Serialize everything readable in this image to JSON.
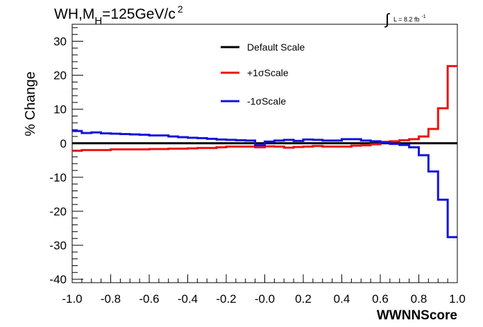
{
  "chart_data": {
    "type": "line",
    "title_main": "WH,M",
    "title_sub": "H",
    "title_rest": "=125GeV/c",
    "title_sup": "2",
    "lumi_integral": "∫",
    "lumi_text": "L = 8.2 fb",
    "lumi_sup": "-1",
    "xlabel": "WWNNScore",
    "ylabel": "% Change",
    "xlim": [
      -1.0,
      1.0
    ],
    "ylim": [
      -41,
      35
    ],
    "x_ticks": [
      "-1.0",
      "-0.8",
      "-0.6",
      "-0.4",
      "-0.2",
      "-0.0",
      "0.2",
      "0.4",
      "0.6",
      "0.8",
      "1.0"
    ],
    "y_ticks": [
      "-40",
      "-30",
      "-20",
      "-10",
      "0",
      "10",
      "20",
      "30"
    ],
    "legend": [
      {
        "label": "Default Scale",
        "color": "#000000"
      },
      {
        "label": "+1σScale",
        "color": "#ee1111"
      },
      {
        "label": "-1σScale",
        "color": "#1111dd"
      }
    ],
    "bin_edges": [
      -1.0,
      -0.95,
      -0.9,
      -0.85,
      -0.8,
      -0.75,
      -0.7,
      -0.65,
      -0.6,
      -0.55,
      -0.5,
      -0.45,
      -0.4,
      -0.35,
      -0.3,
      -0.25,
      -0.2,
      -0.15,
      -0.1,
      -0.05,
      0.0,
      0.05,
      0.1,
      0.15,
      0.2,
      0.25,
      0.3,
      0.35,
      0.4,
      0.45,
      0.5,
      0.55,
      0.6,
      0.65,
      0.7,
      0.75,
      0.8,
      0.85,
      0.9,
      0.95,
      1.0
    ],
    "series": [
      {
        "name": "Default Scale",
        "color": "#000000",
        "values": [
          0,
          0,
          0,
          0,
          0,
          0,
          0,
          0,
          0,
          0,
          0,
          0,
          0,
          0,
          0,
          0,
          0,
          0,
          0,
          0,
          0,
          0,
          0,
          0,
          0,
          0,
          0,
          0,
          0,
          0,
          0,
          0,
          0,
          0,
          0,
          0,
          0,
          0,
          0,
          0
        ]
      },
      {
        "name": "+1σScale",
        "color": "#ee1111",
        "values": [
          -2.2,
          -2.0,
          -2.0,
          -2.0,
          -1.8,
          -1.8,
          -1.8,
          -1.8,
          -1.7,
          -1.7,
          -1.6,
          -1.6,
          -1.5,
          -1.4,
          -1.4,
          -1.2,
          -1.0,
          -1.0,
          -1.0,
          -1.2,
          -0.9,
          -1.0,
          -1.3,
          -1.1,
          -1.0,
          -0.8,
          -1.0,
          -1.0,
          -1.0,
          -0.7,
          -0.6,
          -0.3,
          0.4,
          0.6,
          0.9,
          1.2,
          2.0,
          4.2,
          10.3,
          22.7
        ]
      },
      {
        "name": "-1σScale",
        "color": "#1111dd",
        "values": [
          3.6,
          3.0,
          3.2,
          2.9,
          2.8,
          2.7,
          2.6,
          2.5,
          2.3,
          2.3,
          2.0,
          1.8,
          1.6,
          1.5,
          1.3,
          1.1,
          1.0,
          0.9,
          0.8,
          -0.6,
          0.5,
          0.8,
          1.0,
          0.7,
          1.1,
          1.0,
          0.8,
          0.8,
          1.2,
          1.2,
          0.8,
          0.6,
          0.2,
          -0.2,
          -0.5,
          -1.2,
          -3.5,
          -8.3,
          -16.6,
          -27.6
        ]
      }
    ]
  }
}
